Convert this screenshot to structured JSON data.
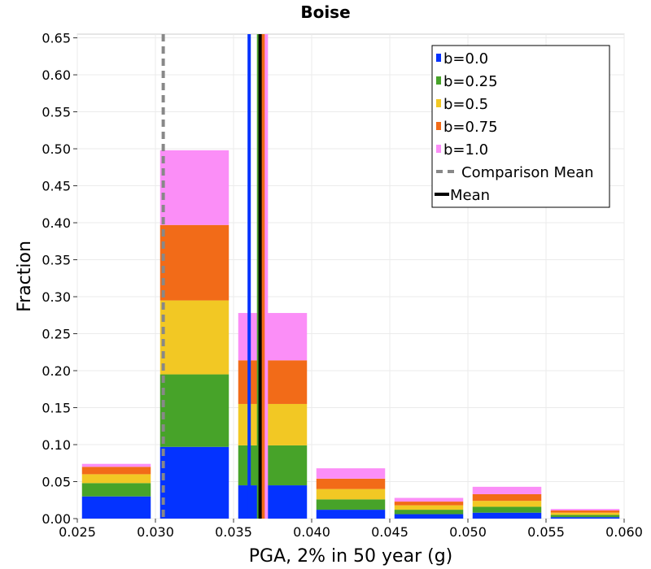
{
  "chart_data": {
    "type": "bar",
    "stacked": true,
    "title": "Boise",
    "xlabel": "PGA, 2% in 50 year (g)",
    "ylabel": "Fraction",
    "xlim": [
      0.025,
      0.06
    ],
    "ylim": [
      0,
      0.655
    ],
    "x_ticks": [
      "0.025",
      "0.030",
      "0.035",
      "0.040",
      "0.045",
      "0.050",
      "0.055",
      "0.060"
    ],
    "y_ticks": [
      "0.00",
      "0.05",
      "0.10",
      "0.15",
      "0.20",
      "0.25",
      "0.30",
      "0.35",
      "0.40",
      "0.45",
      "0.50",
      "0.55",
      "0.60",
      "0.65"
    ],
    "bin_width": 0.005,
    "bins": [
      0.0275,
      0.0325,
      0.0375,
      0.0425,
      0.0475,
      0.0525,
      0.0575
    ],
    "grid": true,
    "legend_position": "top-right",
    "series": [
      {
        "name": "b=0.0",
        "color": "#0433ff",
        "values": [
          0.03,
          0.097,
          0.045,
          0.012,
          0.006,
          0.008,
          0.002
        ]
      },
      {
        "name": "b=0.25",
        "color": "#47a329",
        "values": [
          0.018,
          0.098,
          0.054,
          0.014,
          0.006,
          0.008,
          0.003
        ]
      },
      {
        "name": "b=0.5",
        "color": "#f2c824",
        "values": [
          0.012,
          0.1,
          0.056,
          0.014,
          0.006,
          0.008,
          0.003
        ]
      },
      {
        "name": "b=0.75",
        "color": "#f26b18",
        "values": [
          0.01,
          0.102,
          0.059,
          0.014,
          0.005,
          0.009,
          0.003
        ]
      },
      {
        "name": "b=1.0",
        "color": "#fb8ef7",
        "values": [
          0.004,
          0.101,
          0.064,
          0.014,
          0.005,
          0.01,
          0.002
        ]
      }
    ],
    "comparison_mean": {
      "name": "Comparison Mean",
      "x": 0.0305,
      "color": "#888888",
      "style": "dashed"
    },
    "mean": {
      "name": "Mean",
      "x": 0.0367,
      "color": "#000000"
    },
    "series_means": [
      {
        "series": "b=0.0",
        "x": 0.036,
        "color": "#0433ff"
      },
      {
        "series": "b=0.25",
        "x": 0.0366,
        "color": "#47a329"
      },
      {
        "series": "b=0.5",
        "x": 0.0368,
        "color": "#f2c824"
      },
      {
        "series": "b=0.75",
        "x": 0.0369,
        "color": "#f26b18"
      },
      {
        "series": "b=1.0",
        "x": 0.0371,
        "color": "#fb8ef7"
      }
    ]
  }
}
